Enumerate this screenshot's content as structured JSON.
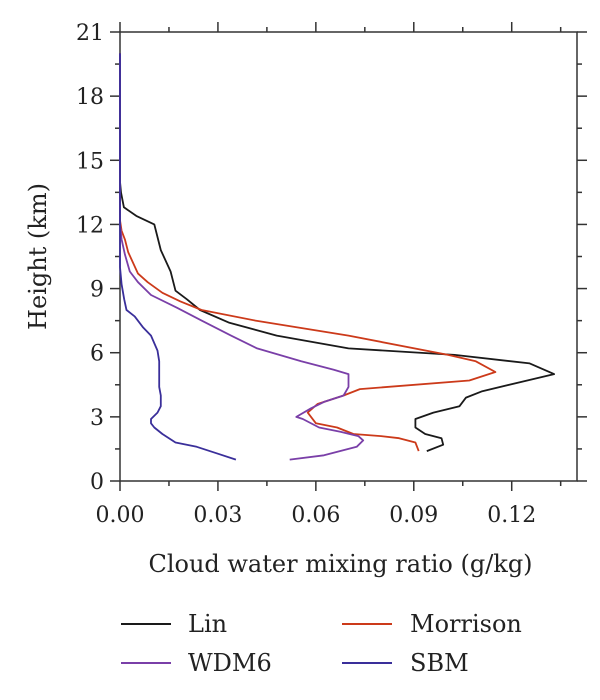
{
  "chart_data": {
    "type": "line",
    "title": "",
    "xlabel": "Cloud water mixing ratio (g/kg)",
    "ylabel": "Height (km)",
    "xlim": [
      0,
      0.14
    ],
    "ylim": [
      0,
      21
    ],
    "xticks": [
      0.0,
      0.03,
      0.06,
      0.09,
      0.12
    ],
    "xtick_labels": [
      "0.00",
      "0.03",
      "0.06",
      "0.09",
      "0.12"
    ],
    "yticks": [
      0,
      3,
      6,
      9,
      12,
      15,
      18,
      21
    ],
    "ytick_labels": [
      "0",
      "3",
      "6",
      "9",
      "12",
      "15",
      "18",
      "21"
    ],
    "grid": false,
    "legend_position": "bottom",
    "series": [
      {
        "name": "Lin",
        "color": "#1a1a1a",
        "points": [
          [
            0.094,
            1.4
          ],
          [
            0.099,
            1.7
          ],
          [
            0.0985,
            2.0
          ],
          [
            0.0935,
            2.2
          ],
          [
            0.0905,
            2.5
          ],
          [
            0.0905,
            2.9
          ],
          [
            0.096,
            3.2
          ],
          [
            0.104,
            3.5
          ],
          [
            0.106,
            3.9
          ],
          [
            0.111,
            4.2
          ],
          [
            0.133,
            5.0
          ],
          [
            0.1255,
            5.5
          ],
          [
            0.1025,
            5.9
          ],
          [
            0.07,
            6.2
          ],
          [
            0.048,
            6.8
          ],
          [
            0.0335,
            7.4
          ],
          [
            0.0245,
            8.0
          ],
          [
            0.0205,
            8.5
          ],
          [
            0.017,
            8.9
          ],
          [
            0.0155,
            9.8
          ],
          [
            0.0125,
            10.8
          ],
          [
            0.0105,
            12.0
          ],
          [
            0.005,
            12.4
          ],
          [
            0.0012,
            12.8
          ],
          [
            0.0003,
            13.5
          ],
          [
            0.0,
            14.0
          ],
          [
            0.0,
            20.0
          ]
        ]
      },
      {
        "name": "Morrison",
        "color": "#cc3a1a",
        "points": [
          [
            0.0915,
            1.4
          ],
          [
            0.0905,
            1.8
          ],
          [
            0.0855,
            2.0
          ],
          [
            0.08,
            2.1
          ],
          [
            0.0715,
            2.2
          ],
          [
            0.0665,
            2.5
          ],
          [
            0.06,
            2.7
          ],
          [
            0.0575,
            3.2
          ],
          [
            0.0605,
            3.6
          ],
          [
            0.0685,
            4.0
          ],
          [
            0.0735,
            4.3
          ],
          [
            0.107,
            4.7
          ],
          [
            0.115,
            5.1
          ],
          [
            0.109,
            5.6
          ],
          [
            0.1005,
            5.9
          ],
          [
            0.07,
            6.8
          ],
          [
            0.0415,
            7.5
          ],
          [
            0.025,
            8.0
          ],
          [
            0.0185,
            8.4
          ],
          [
            0.013,
            8.8
          ],
          [
            0.0085,
            9.3
          ],
          [
            0.0055,
            9.7
          ],
          [
            0.0025,
            10.7
          ],
          [
            0.0015,
            11.3
          ],
          [
            0.0005,
            11.7
          ],
          [
            0.0,
            12.2
          ],
          [
            0.0,
            20.0
          ]
        ]
      },
      {
        "name": "WDM6",
        "color": "#7a3fa8",
        "points": [
          [
            0.052,
            1.0
          ],
          [
            0.0625,
            1.2
          ],
          [
            0.0725,
            1.6
          ],
          [
            0.0745,
            1.9
          ],
          [
            0.073,
            2.1
          ],
          [
            0.0675,
            2.3
          ],
          [
            0.061,
            2.5
          ],
          [
            0.056,
            2.9
          ],
          [
            0.054,
            3.0
          ],
          [
            0.0585,
            3.4
          ],
          [
            0.0625,
            3.7
          ],
          [
            0.0685,
            4.0
          ],
          [
            0.07,
            4.4
          ],
          [
            0.07,
            5.0
          ],
          [
            0.0655,
            5.2
          ],
          [
            0.0555,
            5.6
          ],
          [
            0.042,
            6.2
          ],
          [
            0.034,
            6.8
          ],
          [
            0.025,
            7.5
          ],
          [
            0.0175,
            8.1
          ],
          [
            0.0095,
            8.7
          ],
          [
            0.0055,
            9.3
          ],
          [
            0.003,
            9.8
          ],
          [
            0.0015,
            10.6
          ],
          [
            0.0005,
            11.3
          ],
          [
            0.0,
            12.0
          ],
          [
            0.0,
            20.0
          ]
        ]
      },
      {
        "name": "SBM",
        "color": "#3a2f9a",
        "points": [
          [
            0.0355,
            1.0
          ],
          [
            0.0295,
            1.3
          ],
          [
            0.0235,
            1.6
          ],
          [
            0.017,
            1.8
          ],
          [
            0.013,
            2.2
          ],
          [
            0.0105,
            2.5
          ],
          [
            0.0095,
            2.7
          ],
          [
            0.0095,
            2.9
          ],
          [
            0.0115,
            3.2
          ],
          [
            0.0125,
            3.5
          ],
          [
            0.0125,
            4.0
          ],
          [
            0.012,
            4.4
          ],
          [
            0.012,
            5.0
          ],
          [
            0.012,
            5.6
          ],
          [
            0.0115,
            6.1
          ],
          [
            0.0095,
            6.8
          ],
          [
            0.007,
            7.2
          ],
          [
            0.0045,
            7.7
          ],
          [
            0.002,
            8.0
          ],
          [
            0.0013,
            8.5
          ],
          [
            0.0005,
            9.2
          ],
          [
            0.0,
            10.0
          ],
          [
            0.0,
            20.0
          ]
        ]
      }
    ]
  }
}
